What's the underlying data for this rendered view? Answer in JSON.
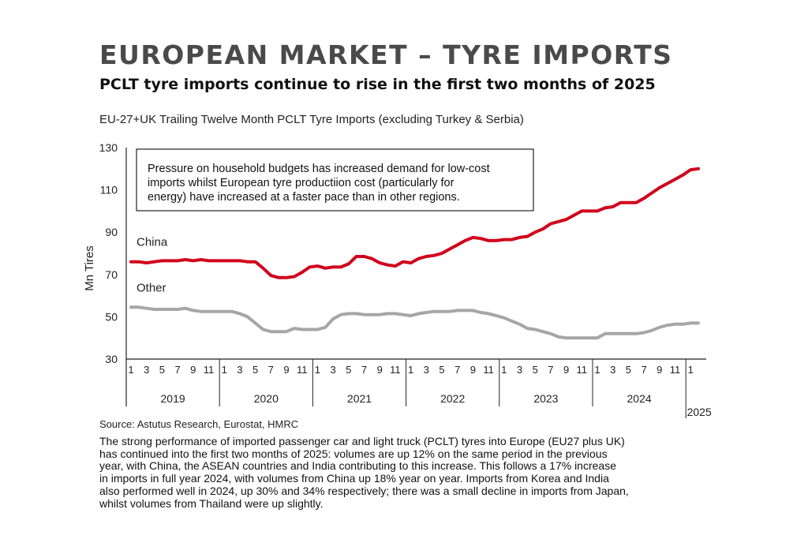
{
  "header": {
    "title": "EUROPEAN MARKET – TYRE IMPORTS",
    "subtitle": "PCLT tyre imports continue to rise in the first  two months of 2025"
  },
  "chart_caption": "EU-27+UK Trailing Twelve Month PCLT Tyre Imports (excluding Turkey & Serbia)",
  "annotation_lines": [
    "Pressure on household budgets has increased demand for low-cost",
    "imports whilst European tyre productiion cost (particularly for",
    "energy) have increased at a faster pace than in other regions."
  ],
  "source": "Source: Astutus Research, Eurostat, HMRC",
  "body_lines": [
    "The strong performance of imported passenger car and light truck (PCLT) tyres into Europe (EU27 plus UK)",
    "has continued into the first two months of 2025: volumes are up 12% on the same period in the previous",
    "year, with China, the ASEAN countries and India contributing to this increase. This follows a 17% increase",
    "in imports in full year 2024, with volumes from China up 18% year on year. Imports from Korea and India",
    "also performed well in 2024, up 30% and 34% respectively; there was a small decline in imports from Japan,",
    "whilst volumes from Thailand were up slightly."
  ],
  "chart_data": {
    "type": "line",
    "ylabel": "Mn Tires",
    "xlabel": "",
    "ylim": [
      30,
      130
    ],
    "yticks": [
      30,
      50,
      70,
      90,
      110,
      130
    ],
    "month_tick_labels": [
      "1",
      "3",
      "5",
      "7",
      "9",
      "11"
    ],
    "years": [
      "2019",
      "2020",
      "2021",
      "2022",
      "2023",
      "2024",
      "2025"
    ],
    "months_total": 74,
    "colors": {
      "China": "#d0021b",
      "Other": "#a6a6a6"
    },
    "series": [
      {
        "name": "China",
        "values": [
          76,
          76,
          75.5,
          76,
          76.5,
          76.5,
          76.5,
          77,
          76.5,
          77,
          76.5,
          76.5,
          76.5,
          76.5,
          76.5,
          76,
          76,
          73,
          69.5,
          68.5,
          68.5,
          69,
          71,
          73.5,
          74,
          73,
          73.5,
          73.5,
          75,
          78.5,
          78.5,
          77.5,
          75.5,
          74.5,
          74,
          76,
          75.5,
          77.5,
          78.5,
          79,
          80,
          82,
          84,
          86,
          87.5,
          87,
          86,
          86,
          86.5,
          86.5,
          87.5,
          88,
          90,
          91.5,
          94,
          95,
          96,
          98,
          100,
          100,
          100,
          101.5,
          102,
          104,
          104,
          104,
          106,
          108.5,
          111,
          113,
          115,
          117,
          119.5,
          120
        ]
      },
      {
        "name": "Other",
        "values": [
          54.5,
          54.5,
          54,
          53.5,
          53.5,
          53.5,
          53.5,
          54,
          53,
          52.5,
          52.5,
          52.5,
          52.5,
          52.5,
          51.5,
          50,
          47,
          44,
          43,
          43,
          43,
          44.5,
          44,
          44,
          44,
          45,
          49,
          51,
          51.5,
          51.5,
          51,
          51,
          51,
          51.5,
          51.5,
          51,
          50.5,
          51.5,
          52,
          52.5,
          52.5,
          52.5,
          53,
          53,
          53,
          52,
          51.5,
          50.5,
          49.5,
          48,
          46.5,
          44.5,
          44,
          43,
          42,
          40.5,
          40,
          40,
          40,
          40,
          40,
          42,
          42,
          42,
          42,
          42,
          42.5,
          43.5,
          45,
          46,
          46.5,
          46.5,
          47,
          47
        ]
      }
    ]
  }
}
